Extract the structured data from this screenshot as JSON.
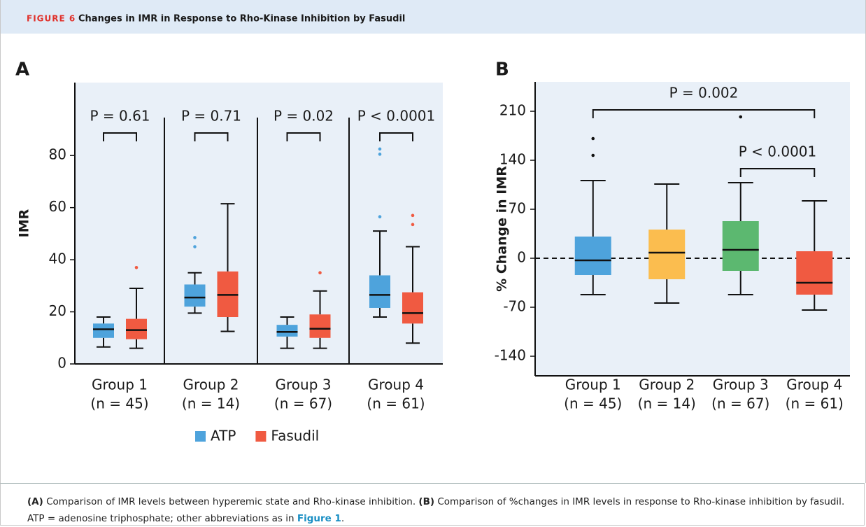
{
  "header": {
    "figure_label": "FIGURE 6",
    "title": "Changes in IMR in Response to Rho-Kinase Inhibition by Fasudil"
  },
  "chart_data": [
    {
      "type": "box",
      "panel": "A",
      "y_label": "IMR",
      "categories": [
        "Group 1",
        "Group 2",
        "Group 3",
        "Group 4"
      ],
      "n_labels": [
        "(n = 45)",
        "(n = 14)",
        "(n = 67)",
        "(n = 61)"
      ],
      "ylim": [
        0,
        108
      ],
      "yticks": [
        0,
        20,
        40,
        60,
        80
      ],
      "series": [
        {
          "name": "ATP",
          "color": "#4ea3dc",
          "boxes": [
            {
              "low": 6.5,
              "q1": 10,
              "median": 13.3,
              "q3": 15.5,
              "high": 18,
              "outliers": []
            },
            {
              "low": 19.5,
              "q1": 22,
              "median": 25.5,
              "q3": 30.5,
              "high": 35,
              "outliers": [
                45,
                48.5
              ]
            },
            {
              "low": 6,
              "q1": 10.5,
              "median": 12.3,
              "q3": 15,
              "high": 18,
              "outliers": []
            },
            {
              "low": 18,
              "q1": 21.5,
              "median": 26.5,
              "q3": 34,
              "high": 51,
              "outliers": [
                56.5,
                80.5,
                82.5
              ]
            }
          ]
        },
        {
          "name": "Fasudil",
          "color": "#f05a41",
          "boxes": [
            {
              "low": 6,
              "q1": 9.5,
              "median": 13,
              "q3": 17.3,
              "high": 29,
              "outliers": [
                37
              ]
            },
            {
              "low": 12.5,
              "q1": 18,
              "median": 26.5,
              "q3": 35.5,
              "high": 61.5,
              "outliers": []
            },
            {
              "low": 6,
              "q1": 10,
              "median": 13.5,
              "q3": 19,
              "high": 28,
              "outliers": [
                35
              ]
            },
            {
              "low": 8,
              "q1": 15.5,
              "median": 19.5,
              "q3": 27.5,
              "high": 45,
              "outliers": [
                53.5,
                57
              ]
            }
          ]
        }
      ],
      "annotations": [
        "P = 0.61",
        "P = 0.71",
        "P = 0.02",
        "P < 0.0001"
      ],
      "legend": "bottom"
    },
    {
      "type": "box",
      "panel": "B",
      "y_label": "% Change in IMR",
      "categories": [
        "Group 1",
        "Group 2",
        "Group 3",
        "Group 4"
      ],
      "n_labels": [
        "(n = 45)",
        "(n = 14)",
        "(n = 67)",
        "(n = 61)"
      ],
      "ylim": [
        -168,
        252
      ],
      "yticks": [
        -140,
        -70,
        0,
        70,
        140,
        210
      ],
      "hline": 0,
      "colors": [
        "#4ea3dc",
        "#fbbd4f",
        "#5cb870",
        "#f05a41"
      ],
      "boxes": [
        {
          "low": -52,
          "q1": -24,
          "median": -3,
          "q3": 31,
          "high": 111,
          "outliers": [
            147,
            171
          ]
        },
        {
          "low": -64,
          "q1": -30,
          "median": 8,
          "q3": 41,
          "high": 106,
          "outliers": []
        },
        {
          "low": -52,
          "q1": -18,
          "median": 12,
          "q3": 53,
          "high": 108,
          "outliers": [
            202
          ]
        },
        {
          "low": -74,
          "q1": -52,
          "median": -35,
          "q3": 10,
          "high": 82,
          "outliers": []
        }
      ],
      "annotations": [
        "P = 0.002",
        "P < 0.0001"
      ]
    }
  ],
  "caption": {
    "a_label": "(A)",
    "a_text": " Comparison of IMR levels between hyperemic state and Rho-kinase inhibition. ",
    "b_label": "(B)",
    "b_text": " Comparison of %changes in IMR levels in response to Rho-kinase inhibition by fasudil. ATP = adenosine triphosphate; other abbreviations as in ",
    "link": "Figure 1",
    "end": "."
  }
}
